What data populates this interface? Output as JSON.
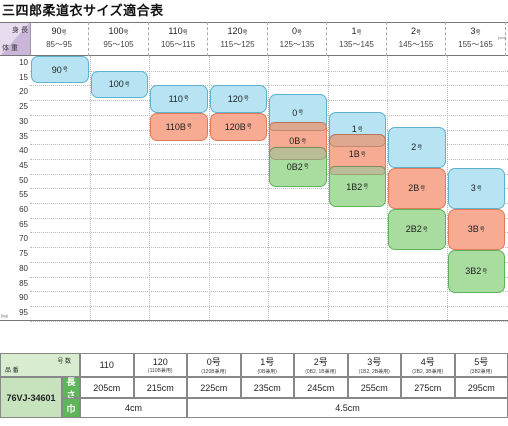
{
  "title": "三四郎柔道衣サイズ適合表",
  "corner": {
    "top": "身 長",
    "bottom": "体 重"
  },
  "unit_cm": "(cm)",
  "unit_kg": "(kg)",
  "columns": [
    {
      "size": "90",
      "suffix": "号",
      "range": "85〜95"
    },
    {
      "size": "100",
      "suffix": "号",
      "range": "95〜105"
    },
    {
      "size": "110",
      "suffix": "号",
      "range": "105〜115"
    },
    {
      "size": "120",
      "suffix": "号",
      "range": "115〜125"
    },
    {
      "size": "0",
      "suffix": "号",
      "range": "125〜135"
    },
    {
      "size": "1",
      "suffix": "号",
      "range": "135〜145"
    },
    {
      "size": "2",
      "suffix": "号",
      "range": "145〜155"
    },
    {
      "size": "3",
      "suffix": "号",
      "range": "155〜165"
    }
  ],
  "rows": [
    "10",
    "15",
    "20",
    "25",
    "30",
    "35",
    "40",
    "45",
    "50",
    "55",
    "60",
    "65",
    "70",
    "75",
    "80",
    "85",
    "90",
    "95"
  ],
  "boxes": [
    {
      "label": "90",
      "suffix": "号",
      "color": "blue"
    },
    {
      "label": "100",
      "suffix": "号",
      "color": "blue"
    },
    {
      "label": "110",
      "suffix": "号",
      "color": "blue"
    },
    {
      "label": "120",
      "suffix": "号",
      "color": "blue"
    },
    {
      "label": "110B",
      "suffix": "号",
      "color": "red"
    },
    {
      "label": "120B",
      "suffix": "号",
      "color": "red"
    },
    {
      "label": "0",
      "suffix": "号",
      "color": "blue"
    },
    {
      "label": "0B",
      "suffix": "号",
      "color": "red"
    },
    {
      "label": "0B2",
      "suffix": "号",
      "color": "green"
    },
    {
      "label": "1",
      "suffix": "号",
      "color": "blue"
    },
    {
      "label": "1B",
      "suffix": "号",
      "color": "red"
    },
    {
      "label": "1B2",
      "suffix": "号",
      "color": "green"
    },
    {
      "label": "2",
      "suffix": "号",
      "color": "blue"
    },
    {
      "label": "2B",
      "suffix": "号",
      "color": "red"
    },
    {
      "label": "2B2",
      "suffix": "号",
      "color": "green"
    },
    {
      "label": "3",
      "suffix": "号",
      "color": "blue"
    },
    {
      "label": "3B",
      "suffix": "号",
      "color": "red"
    },
    {
      "label": "3B2",
      "suffix": "号",
      "color": "green"
    }
  ],
  "table": {
    "head_left_top": "号 数",
    "head_left_bottom": "品 番",
    "product_code": "76VJ-34601",
    "length_label": "長さ",
    "width_label": "巾",
    "sizes": [
      {
        "name": "110",
        "note": ""
      },
      {
        "name": "120",
        "note": "(110B兼用)"
      },
      {
        "name": "0号",
        "note": "(120B兼用)"
      },
      {
        "name": "1号",
        "note": "(0B兼用)"
      },
      {
        "name": "2号",
        "note": "(0B2, 1B兼用)"
      },
      {
        "name": "3号",
        "note": "(1B2, 2B兼用)"
      },
      {
        "name": "4号",
        "note": "(2B2, 3B兼用)"
      },
      {
        "name": "5号",
        "note": "(3B2兼用)"
      }
    ],
    "lengths": [
      "205cm",
      "215cm",
      "225cm",
      "235cm",
      "245cm",
      "255cm",
      "275cm",
      "295cm"
    ],
    "width_small": "4cm",
    "width_large": "4.5cm"
  },
  "colors": {
    "blue": "#b7e3f2",
    "red": "#f7ab93",
    "green": "#a8dd9f",
    "overlap": "#c9a48f"
  }
}
